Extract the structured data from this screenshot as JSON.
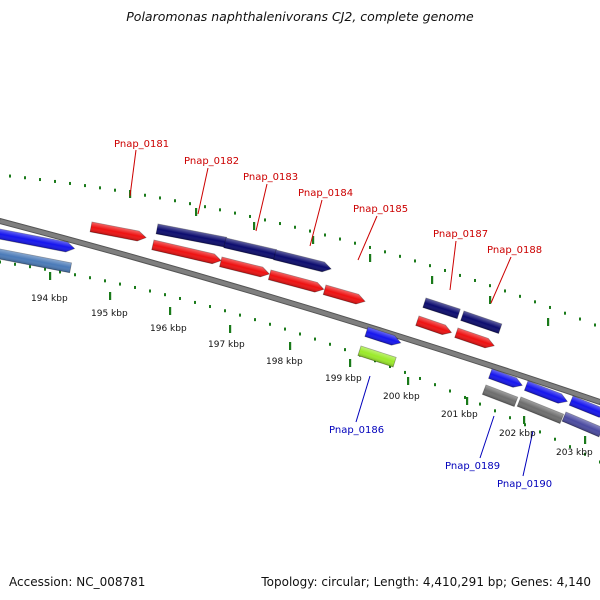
{
  "title": "Polaromonas naphthalenivorans CJ2, complete genome",
  "footer": {
    "accession": "Accession: NC_008781",
    "topology": "Topology: circular; Length: 4,410,291 bp; Genes: 4,140"
  },
  "colors": {
    "backbone": "#7f7f7f",
    "tick_dotted": "#1a7a1a",
    "label_forward": "#cc0000",
    "label_reverse": "#0000bb",
    "gene_red": "#ee1111",
    "gene_navy": "#0b0b6e",
    "gene_blue": "#1515ee",
    "gene_steel": "#4a7ab8",
    "gene_lime": "#9bea2a",
    "gene_gray": "#6e6e6e",
    "gene_slate": "#4a4aa0"
  },
  "ticks": [
    "194 kbp",
    "195 kbp",
    "196 kbp",
    "197 kbp",
    "198 kbp",
    "199 kbp",
    "200 kbp",
    "201 kbp",
    "202 kbp",
    "203 kbp"
  ],
  "gene_labels": [
    {
      "id": "Pnap_0181",
      "strand": "forward"
    },
    {
      "id": "Pnap_0182",
      "strand": "forward"
    },
    {
      "id": "Pnap_0183",
      "strand": "forward"
    },
    {
      "id": "Pnap_0184",
      "strand": "forward"
    },
    {
      "id": "Pnap_0185",
      "strand": "forward"
    },
    {
      "id": "Pnap_0187",
      "strand": "forward"
    },
    {
      "id": "Pnap_0188",
      "strand": "forward"
    },
    {
      "id": "Pnap_0186",
      "strand": "reverse"
    },
    {
      "id": "Pnap_0189",
      "strand": "reverse"
    },
    {
      "id": "Pnap_0190",
      "strand": "reverse"
    }
  ]
}
